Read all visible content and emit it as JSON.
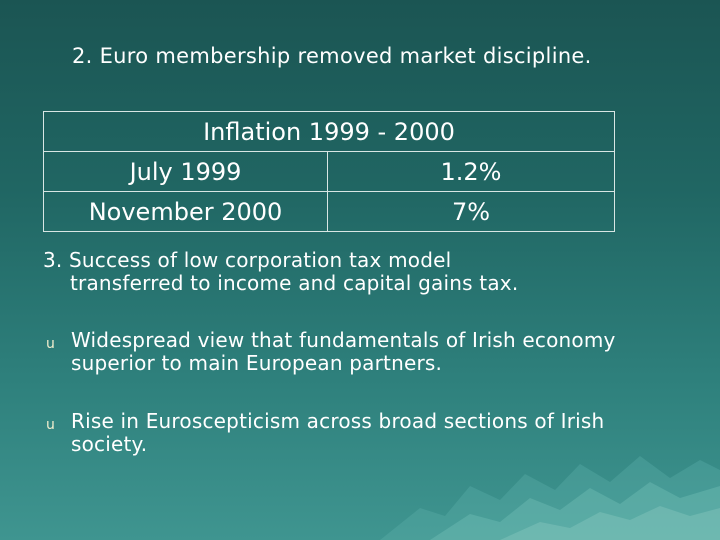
{
  "slide": {
    "heading": "2. Euro membership removed market discipline.",
    "table": {
      "title": "Inflation 1999 - 2000",
      "rows": [
        {
          "period": "July 1999",
          "value": "1.2%"
        },
        {
          "period": "November 2000",
          "value": "7%"
        }
      ]
    },
    "point3": {
      "line1": "3. Success of low corporation tax model",
      "line2": "transferred to income and capital gains tax."
    },
    "bullets": [
      {
        "text": "Widespread view that fundamentals of Irish economy superior to main European partners."
      },
      {
        "text": "Rise in Euroscepticism across broad sections of Irish society."
      }
    ],
    "bullet_glyph": "u",
    "colors": {
      "background_top": "#1b5553",
      "background_bottom": "#3f9590",
      "text": "#ffffff",
      "table_border": "#d8e6e4"
    }
  }
}
